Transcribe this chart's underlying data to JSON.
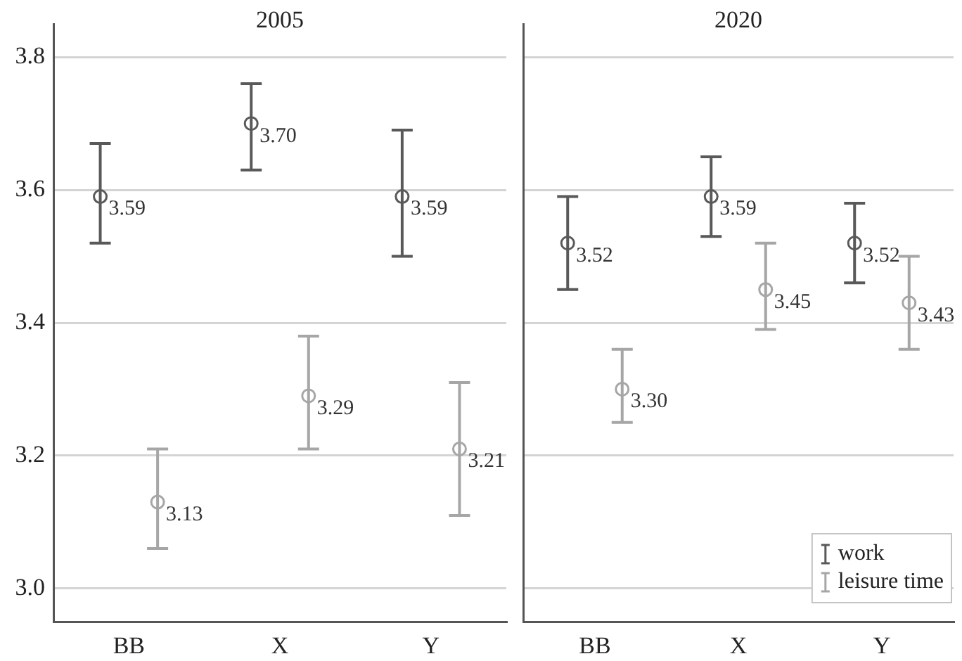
{
  "chart_data": [
    {
      "type": "scatter",
      "title": "2005",
      "categories": [
        "BB",
        "X",
        "Y"
      ],
      "ylim": [
        2.95,
        3.85
      ],
      "yticks": [
        {
          "value": 3,
          "label": "3.0"
        },
        3.2,
        3.4,
        3.6,
        3.8
      ],
      "grid": "y",
      "marker": "circle",
      "series": [
        {
          "color": "#595959",
          "values": [
            3.59,
            3.7,
            3.59
          ],
          "value_labels": [
            "3.59",
            "3.70",
            "3.59"
          ],
          "errors": [
            [
              3.52,
              3.67
            ],
            [
              3.63,
              3.76
            ],
            [
              3.5,
              3.69
            ]
          ]
        },
        {
          "color": "#a6a6a6",
          "values": [
            3.13,
            3.29,
            3.21
          ],
          "value_labels": [
            "3.13",
            "3.29",
            "3.21"
          ],
          "errors": [
            [
              3.06,
              3.21
            ],
            [
              3.21,
              3.38
            ],
            [
              3.11,
              3.31
            ]
          ]
        }
      ]
    },
    {
      "type": "scatter",
      "title": "2020",
      "categories": [
        "BB",
        "X",
        "Y"
      ],
      "ylim": [
        2.95,
        3.85
      ],
      "yticks": [
        3,
        3.2,
        3.4,
        3.6,
        3.8
      ],
      "grid": "y",
      "marker": "circle",
      "tick_labels": "x",
      "legend": "bottom right",
      "series": [
        {
          "name": "work",
          "color": "#595959",
          "values": [
            3.52,
            3.59,
            3.52
          ],
          "value_labels": [
            "3.52",
            "3.59",
            "3.52"
          ],
          "errors": [
            [
              3.45,
              3.59
            ],
            [
              3.53,
              3.65
            ],
            [
              3.46,
              3.58
            ]
          ]
        },
        {
          "name": "leisure time",
          "color": "#a6a6a6",
          "values": [
            3.3,
            3.45,
            3.43
          ],
          "value_labels": [
            "3.30",
            "3.45",
            "3.43"
          ],
          "errors": [
            [
              3.25,
              3.36
            ],
            [
              3.39,
              3.52
            ],
            [
              3.36,
              3.5
            ]
          ]
        }
      ]
    }
  ]
}
